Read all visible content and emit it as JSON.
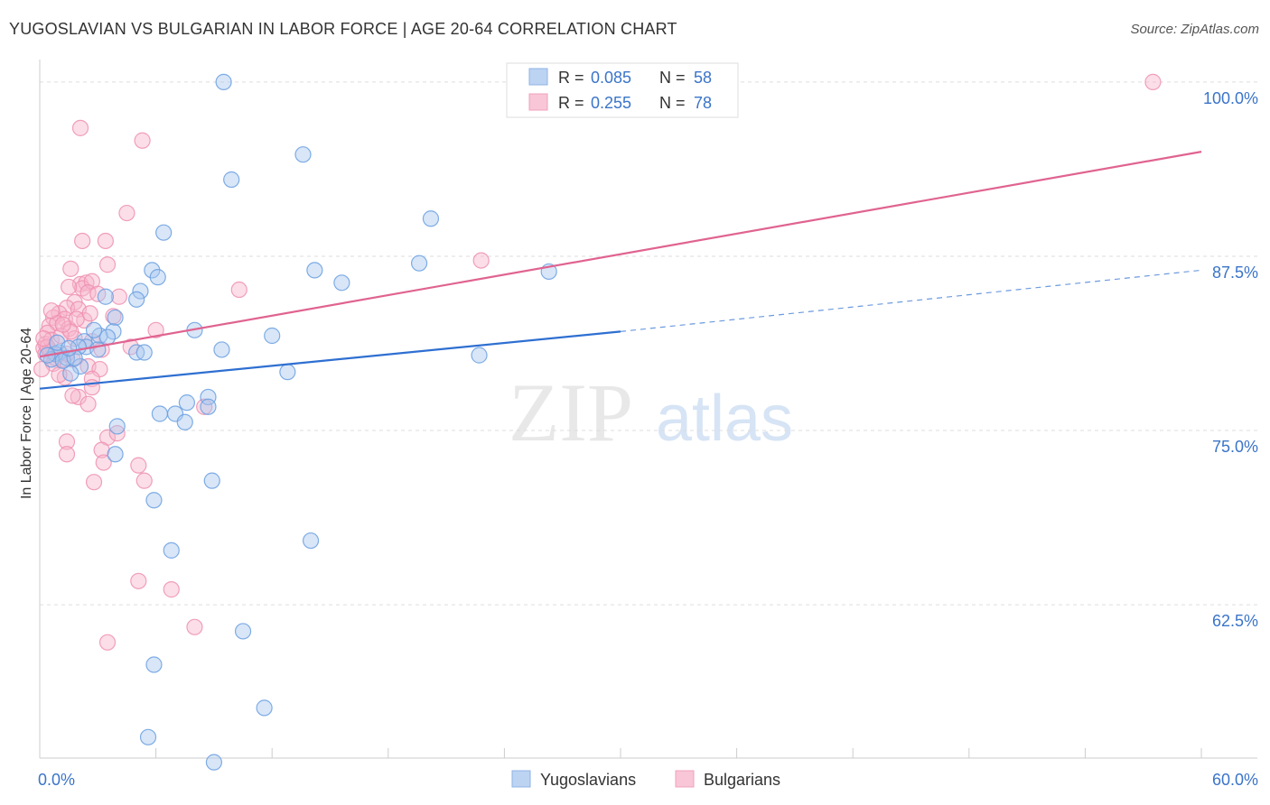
{
  "header": {
    "title": "YUGOSLAVIAN VS BULGARIAN IN LABOR FORCE | AGE 20-64 CORRELATION CHART",
    "source": "Source: ZipAtlas.com"
  },
  "watermark": {
    "zip": "ZIP",
    "atlas": "atlas"
  },
  "colors": {
    "blue_fill": "#a9c7f0",
    "blue_stroke": "#6a9fe0",
    "blue_line": "#2e6fd1",
    "pink_fill": "#f6b6cb",
    "pink_stroke": "#ee8fb0",
    "pink_line": "#e06390",
    "tick_label": "#3a74c9",
    "grid": "#dddddd",
    "axis": "#cccccc"
  },
  "legend": {
    "rows": [
      {
        "r_label": "R =",
        "r_value": "0.085",
        "n_label": "N =",
        "n_value": "58"
      },
      {
        "r_label": "R =",
        "r_value": "0.255",
        "n_label": "N =",
        "n_value": "78"
      }
    ]
  },
  "chart_data": {
    "type": "scatter",
    "title": "YUGOSLAVIAN VS BULGARIAN IN LABOR FORCE | AGE 20-64 CORRELATION CHART",
    "xlabel": "",
    "ylabel": "In Labor Force | Age 20-64",
    "xlim": [
      0,
      60
    ],
    "ylim": [
      51.5,
      102
    ],
    "x_tick_labels": [
      "0.0%",
      "60.0%"
    ],
    "y_ticks": [
      62.5,
      75.0,
      87.5,
      100.0
    ],
    "y_tick_labels": [
      "62.5%",
      "75.0%",
      "87.5%",
      "100.0%"
    ],
    "grid": true,
    "legend_position": "bottom",
    "series": [
      {
        "name": "Yugoslavians",
        "r": 0.085,
        "n": 58,
        "trend": {
          "x0": 0,
          "y0": 78.0,
          "x1": 30,
          "y1": 82.1,
          "dash_to_x": 60,
          "dash_to_y": 86.5
        },
        "points": [
          [
            9.5,
            100.0
          ],
          [
            13.6,
            94.8
          ],
          [
            9.9,
            93.0
          ],
          [
            20.2,
            90.2
          ],
          [
            6.4,
            89.2
          ],
          [
            5.8,
            86.5
          ],
          [
            6.1,
            86.0
          ],
          [
            14.2,
            86.5
          ],
          [
            15.6,
            85.6
          ],
          [
            19.6,
            87.0
          ],
          [
            26.3,
            86.4
          ],
          [
            3.4,
            84.6
          ],
          [
            5.2,
            85.0
          ],
          [
            5.0,
            84.4
          ],
          [
            3.9,
            83.1
          ],
          [
            3.8,
            82.1
          ],
          [
            3.1,
            81.8
          ],
          [
            3.5,
            81.7
          ],
          [
            2.8,
            82.2
          ],
          [
            2.3,
            81.4
          ],
          [
            2.4,
            81.0
          ],
          [
            1.0,
            80.6
          ],
          [
            1.4,
            80.2
          ],
          [
            2.1,
            79.6
          ],
          [
            1.6,
            79.1
          ],
          [
            0.8,
            80.5
          ],
          [
            0.6,
            80.1
          ],
          [
            8.0,
            82.2
          ],
          [
            12.0,
            81.8
          ],
          [
            9.4,
            80.8
          ],
          [
            5.0,
            80.6
          ],
          [
            5.4,
            80.6
          ],
          [
            12.8,
            79.2
          ],
          [
            22.7,
            80.4
          ],
          [
            8.7,
            77.4
          ],
          [
            7.6,
            77.0
          ],
          [
            6.2,
            76.2
          ],
          [
            7.0,
            76.2
          ],
          [
            8.7,
            76.7
          ],
          [
            7.5,
            75.6
          ],
          [
            4.0,
            75.3
          ],
          [
            3.9,
            73.3
          ],
          [
            8.9,
            71.4
          ],
          [
            5.9,
            70.0
          ],
          [
            14.0,
            67.1
          ],
          [
            6.8,
            66.4
          ],
          [
            10.5,
            60.6
          ],
          [
            5.9,
            58.2
          ],
          [
            11.6,
            55.1
          ],
          [
            5.6,
            53.0
          ],
          [
            9.0,
            51.2
          ],
          [
            1.2,
            80.0
          ],
          [
            0.4,
            80.4
          ],
          [
            2.0,
            81.0
          ],
          [
            1.8,
            80.2
          ],
          [
            3.0,
            80.8
          ],
          [
            0.9,
            81.3
          ],
          [
            1.5,
            80.9
          ]
        ]
      },
      {
        "name": "Bulgarians",
        "r": 0.255,
        "n": 78,
        "trend": {
          "x0": 0,
          "y0": 80.3,
          "x1": 60,
          "y1": 95.0
        },
        "points": [
          [
            57.5,
            100.0
          ],
          [
            2.1,
            96.7
          ],
          [
            5.3,
            95.8
          ],
          [
            4.5,
            90.6
          ],
          [
            2.2,
            88.6
          ],
          [
            3.4,
            88.6
          ],
          [
            3.5,
            86.9
          ],
          [
            1.6,
            86.6
          ],
          [
            22.8,
            87.2
          ],
          [
            2.1,
            85.5
          ],
          [
            2.4,
            85.6
          ],
          [
            2.2,
            85.2
          ],
          [
            1.5,
            85.3
          ],
          [
            10.3,
            85.1
          ],
          [
            2.7,
            85.7
          ],
          [
            2.5,
            84.9
          ],
          [
            1.8,
            84.2
          ],
          [
            4.1,
            84.6
          ],
          [
            1.4,
            83.8
          ],
          [
            1.0,
            83.4
          ],
          [
            1.3,
            83.0
          ],
          [
            2.0,
            83.7
          ],
          [
            0.7,
            83.1
          ],
          [
            3.8,
            83.2
          ],
          [
            0.5,
            82.5
          ],
          [
            0.9,
            82.7
          ],
          [
            1.5,
            82.3
          ],
          [
            0.4,
            82.0
          ],
          [
            6.0,
            82.2
          ],
          [
            1.8,
            81.6
          ],
          [
            2.7,
            81.4
          ],
          [
            0.3,
            81.2
          ],
          [
            0.2,
            80.9
          ],
          [
            0.5,
            80.7
          ],
          [
            0.9,
            80.4
          ],
          [
            3.2,
            80.8
          ],
          [
            4.7,
            81.0
          ],
          [
            1.2,
            80.1
          ],
          [
            0.7,
            79.8
          ],
          [
            1.7,
            80.1
          ],
          [
            2.5,
            79.6
          ],
          [
            3.1,
            79.4
          ],
          [
            1.3,
            78.8
          ],
          [
            2.7,
            78.7
          ],
          [
            2.7,
            78.1
          ],
          [
            2.0,
            77.4
          ],
          [
            1.0,
            79.0
          ],
          [
            1.7,
            77.5
          ],
          [
            2.5,
            76.9
          ],
          [
            8.5,
            76.7
          ],
          [
            3.5,
            74.5
          ],
          [
            4.0,
            74.8
          ],
          [
            1.4,
            74.2
          ],
          [
            3.2,
            73.6
          ],
          [
            1.4,
            73.3
          ],
          [
            3.3,
            72.7
          ],
          [
            5.1,
            72.5
          ],
          [
            2.8,
            71.3
          ],
          [
            5.4,
            71.4
          ],
          [
            5.1,
            64.2
          ],
          [
            6.8,
            63.6
          ],
          [
            8.0,
            60.9
          ],
          [
            3.5,
            59.8
          ],
          [
            0.6,
            81.5
          ],
          [
            0.3,
            80.5
          ],
          [
            1.1,
            81.8
          ],
          [
            2.3,
            82.9
          ],
          [
            0.8,
            80.2
          ],
          [
            1.9,
            83.0
          ],
          [
            0.4,
            81.0
          ],
          [
            1.6,
            82.1
          ],
          [
            0.1,
            79.4
          ],
          [
            3.0,
            84.8
          ],
          [
            2.6,
            83.4
          ],
          [
            1.2,
            82.6
          ],
          [
            0.6,
            83.6
          ],
          [
            0.2,
            81.6
          ],
          [
            1.4,
            80.5
          ]
        ]
      }
    ]
  }
}
